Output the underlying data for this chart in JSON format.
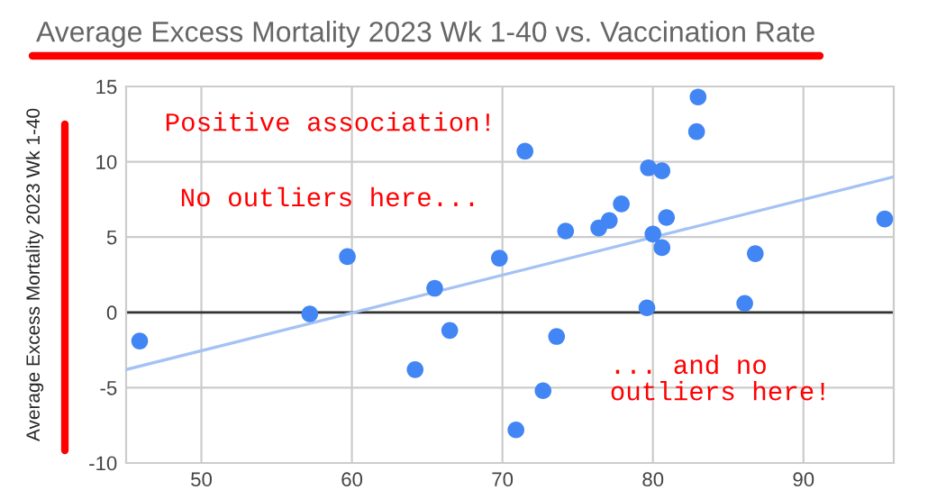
{
  "chart_data": {
    "type": "scatter",
    "title": "Average Excess Mortality 2023 Wk 1-40 vs. Vaccination Rate",
    "ylabel": "Average Excess Mortality 2023 Wk 1-40",
    "series": [
      {
        "color": "#4285f4",
        "marker": "circle",
        "x": [
          45.9,
          57.2,
          59.7,
          64.2,
          65.5,
          66.5,
          69.8,
          71.5,
          70.9,
          72.7,
          73.6,
          74.2,
          76.4,
          77.1,
          77.9,
          79.7,
          80.6,
          79.6,
          80.0,
          80.6,
          80.9,
          83.0,
          82.9,
          86.1,
          86.8,
          95.4
        ],
        "values": [
          -1.9,
          -0.1,
          3.7,
          -3.8,
          1.6,
          -1.2,
          3.6,
          10.7,
          -7.8,
          -5.2,
          -1.6,
          5.4,
          5.6,
          6.1,
          7.2,
          9.6,
          9.4,
          0.3,
          5.2,
          4.3,
          6.3,
          14.3,
          12.0,
          0.6,
          3.9,
          6.2
        ]
      },
      {
        "type": "line",
        "color": "#a4c2f4",
        "x": [
          45,
          96
        ],
        "values": [
          -3.8,
          9.0
        ]
      }
    ],
    "xlim": [
      45,
      96
    ],
    "xticks": [
      50,
      60,
      70,
      80,
      90
    ],
    "ylim": [
      -10,
      15
    ],
    "yticks": [
      -10,
      -5,
      0,
      5,
      10,
      15
    ],
    "grid": true,
    "ref_lines": [
      {
        "axis": "y",
        "value": 0,
        "color": "#333333"
      }
    ],
    "annotations": [
      "Positive association!",
      "No outliers here...",
      "... and no\noutliers here!"
    ]
  }
}
